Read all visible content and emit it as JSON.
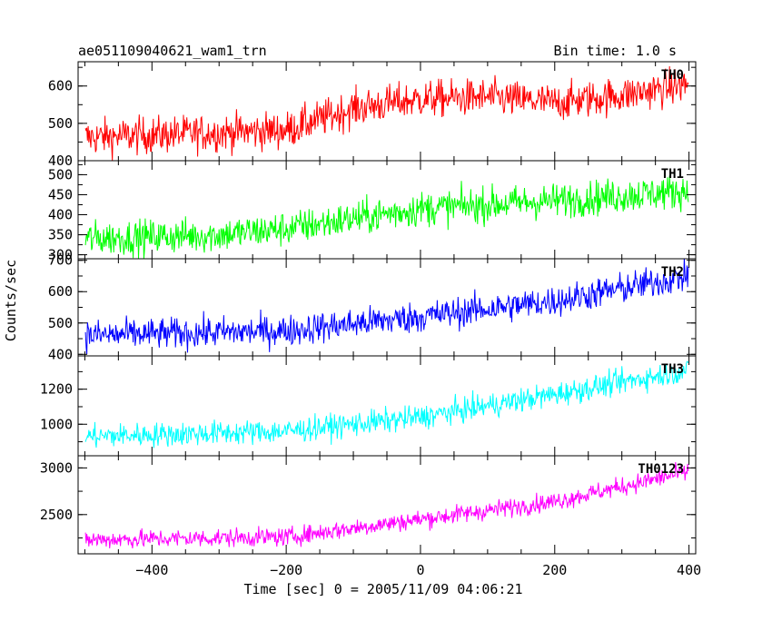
{
  "chart_data": {
    "type": "line",
    "title": "ae051109040621_wam1_trn",
    "subtitle": "Bin time: 1.0 s",
    "xlabel": "Time [sec] 0 = 2005/11/09 04:06:21",
    "ylabel": "Counts/sec",
    "xlim": [
      -510,
      410
    ],
    "x_ticks": [
      "−400",
      "−200",
      "0",
      "200",
      "400"
    ],
    "x_tick_values": [
      -400,
      -200,
      0,
      200,
      400
    ],
    "grid": false,
    "panels": [
      {
        "label": "TH0",
        "color": "#ff0000",
        "ylim": [
          400,
          665
        ],
        "yticks": [
          400,
          500,
          600
        ],
        "ytick_labels": [
          "400",
          "500",
          "600"
        ],
        "trend": [
          [
            -500,
            462
          ],
          [
            -200,
            482
          ],
          [
            -100,
            540
          ],
          [
            0,
            565
          ],
          [
            100,
            570
          ],
          [
            200,
            555
          ],
          [
            300,
            575
          ],
          [
            400,
            605
          ]
        ],
        "noise": 25
      },
      {
        "label": "TH1",
        "color": "#00ff00",
        "ylim": [
          290,
          535
        ],
        "yticks": [
          300,
          350,
          400,
          450,
          500
        ],
        "ytick_labels": [
          "300",
          "350",
          "400",
          "450",
          "500"
        ],
        "trend": [
          [
            -500,
            340
          ],
          [
            -300,
            350
          ],
          [
            -200,
            365
          ],
          [
            0,
            415
          ],
          [
            200,
            435
          ],
          [
            400,
            460
          ]
        ],
        "noise": 22
      },
      {
        "label": "TH2",
        "color": "#0000ff",
        "ylim": [
          395,
          705
        ],
        "yticks": [
          400,
          500,
          600,
          700
        ],
        "ytick_labels": [
          "400",
          "500",
          "600",
          "700"
        ],
        "trend": [
          [
            -500,
            460
          ],
          [
            -200,
            475
          ],
          [
            0,
            520
          ],
          [
            200,
            570
          ],
          [
            400,
            650
          ]
        ],
        "noise": 25
      },
      {
        "label": "TH3",
        "color": "#00ffff",
        "ylim": [
          820,
          1390
        ],
        "yticks": [
          1000,
          1200
        ],
        "ytick_labels": [
          "1000",
          "1200"
        ],
        "trend": [
          [
            -500,
            930
          ],
          [
            -200,
            960
          ],
          [
            0,
            1040
          ],
          [
            200,
            1170
          ],
          [
            400,
            1310
          ]
        ],
        "noise": 35
      },
      {
        "label": "TH0123",
        "color": "#ff00ff",
        "ylim": [
          2080,
          3130
        ],
        "yticks": [
          2500,
          3000
        ],
        "ytick_labels": [
          "2500",
          "3000"
        ],
        "trend": [
          [
            -500,
            2230
          ],
          [
            -200,
            2260
          ],
          [
            0,
            2450
          ],
          [
            200,
            2640
          ],
          [
            400,
            2960
          ]
        ],
        "noise": 50
      }
    ]
  }
}
